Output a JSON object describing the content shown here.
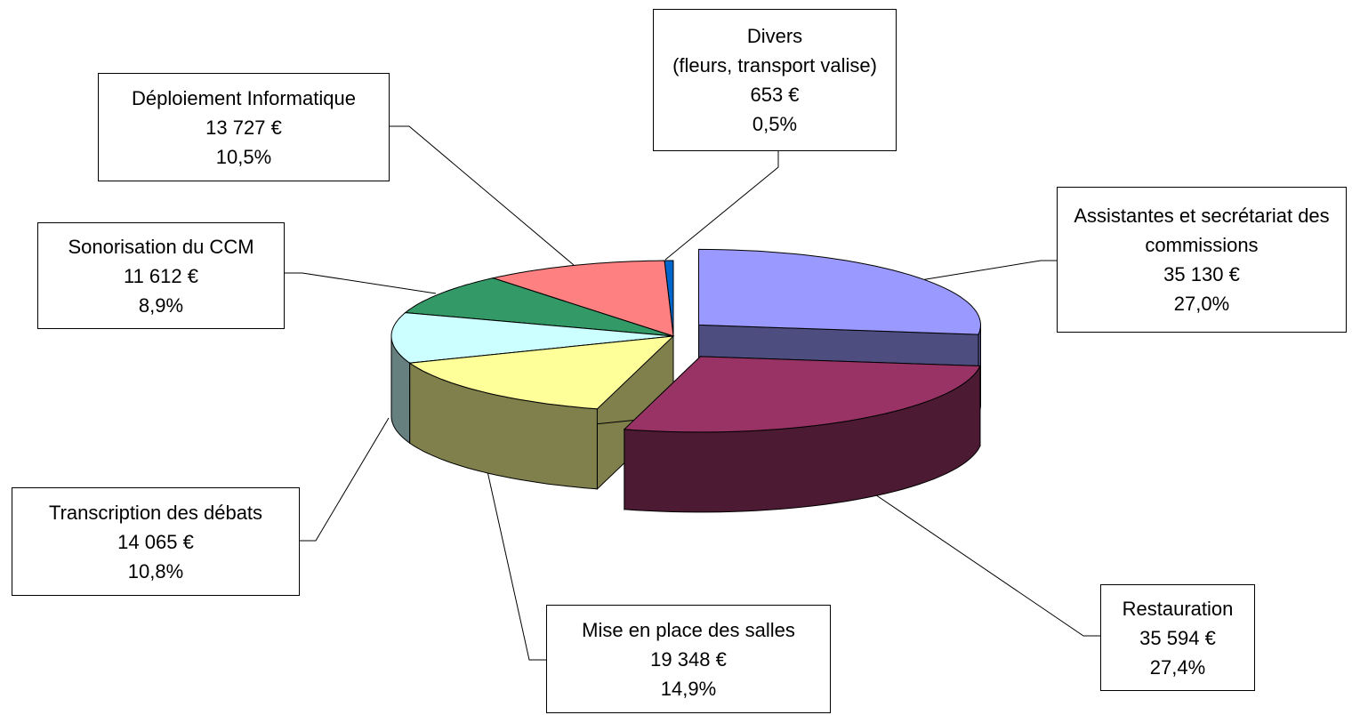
{
  "chart_data": {
    "type": "pie",
    "categories": [
      "Assistantes et secrétariat des commissions",
      "Restauration",
      "Mise en place des salles",
      "Transcription des débats",
      "Sonorisation du CCM",
      "Déploiement Informatique",
      "Divers\n(fleurs, transport valise)"
    ],
    "values": [
      35130,
      35594,
      19348,
      14065,
      11612,
      13727,
      653
    ],
    "value_labels": [
      "35 130 €",
      "35 594 €",
      "19 348 €",
      "14 065 €",
      "11 612 €",
      "13 727 €",
      "653 €"
    ],
    "percent_labels": [
      "27,0%",
      "27,4%",
      "14,9%",
      "10,8%",
      "8,9%",
      "10,5%",
      "0,5%"
    ],
    "colors": [
      "#9999FF",
      "#993366",
      "#FFFF99",
      "#CCFFFF",
      "#339966",
      "#FF8080",
      "#0066CC"
    ]
  }
}
